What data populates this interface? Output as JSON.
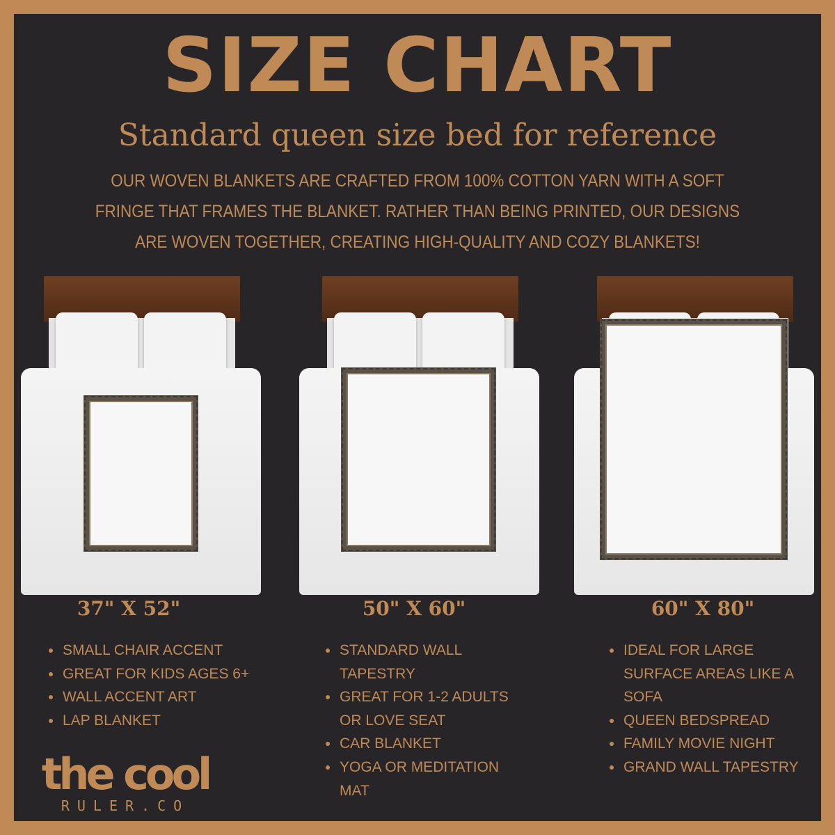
{
  "colors": {
    "accent": "#c08a56",
    "background": "#272528"
  },
  "header": {
    "title": "SIZE CHART",
    "subtitle": "Standard queen size bed for reference",
    "description": "OUR WOVEN BLANKETS ARE CRAFTED FROM 100% COTTON YARN WITH A SOFT FRINGE THAT FRAMES THE BLANKET. RATHER THAN BEING PRINTED, OUR DESIGNS ARE WOVEN TOGETHER, CREATING HIGH-QUALITY AND COZY BLANKETS!"
  },
  "sizes": [
    {
      "label": "37\" X 52\"",
      "features": [
        "Small chair accent",
        "Great for kids ages 6+",
        "Wall accent art",
        "Lap blanket"
      ]
    },
    {
      "label": "50\" X 60\"",
      "features": [
        "Standard wall tapestry",
        "Great for 1-2 adults or love seat",
        "Car blanket",
        "Yoga or meditation mat"
      ]
    },
    {
      "label": "60\" X 80\"",
      "features": [
        "Ideal for large surface areas like a sofa",
        "Queen bedspread",
        "Family movie night",
        "Grand wall tapestry"
      ]
    }
  ],
  "logo": {
    "main": "the cool",
    "sub": "RULER.CO"
  }
}
